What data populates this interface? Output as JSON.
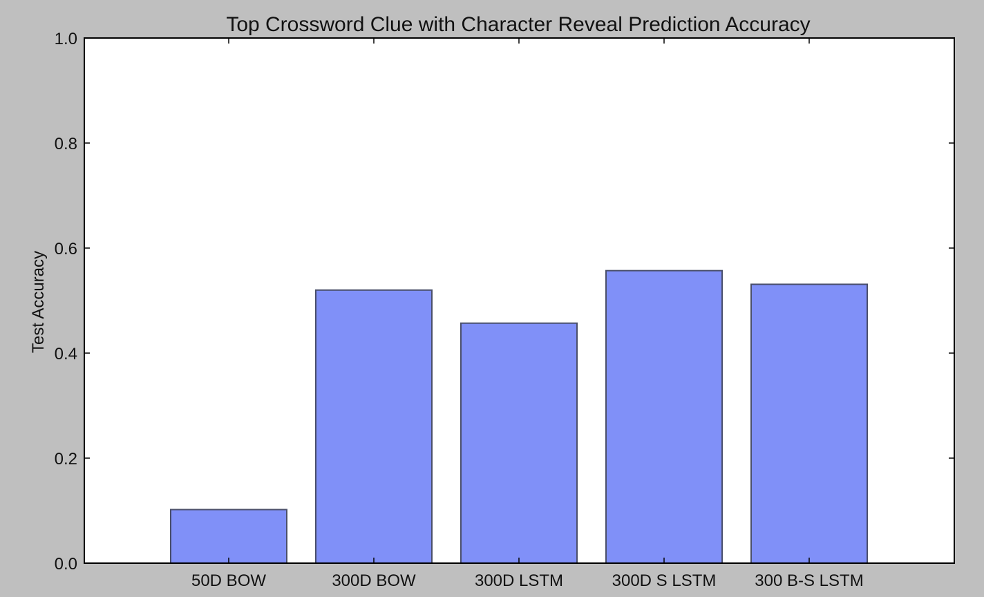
{
  "chart_data": {
    "type": "bar",
    "title": "Top Crossword Clue with Character Reveal Prediction Accuracy",
    "xlabel": "",
    "ylabel": "Test Accuracy",
    "categories": [
      "50D BOW",
      "300D BOW",
      "300D LSTM",
      "300D S LSTM",
      "300 B-S LSTM"
    ],
    "values": [
      0.102,
      0.52,
      0.457,
      0.557,
      0.531
    ],
    "ylim": [
      0,
      1.0
    ],
    "yticks": [
      "0.0",
      "0.2",
      "0.4",
      "0.6",
      "0.8",
      "1.0"
    ],
    "grid": false,
    "colors": {
      "bar_fill": "#8090f8",
      "bar_stroke": "#4a4f6a",
      "plot_bg": "#ffffff",
      "page_bg": "#bfbfbf",
      "axis": "#000000"
    }
  }
}
